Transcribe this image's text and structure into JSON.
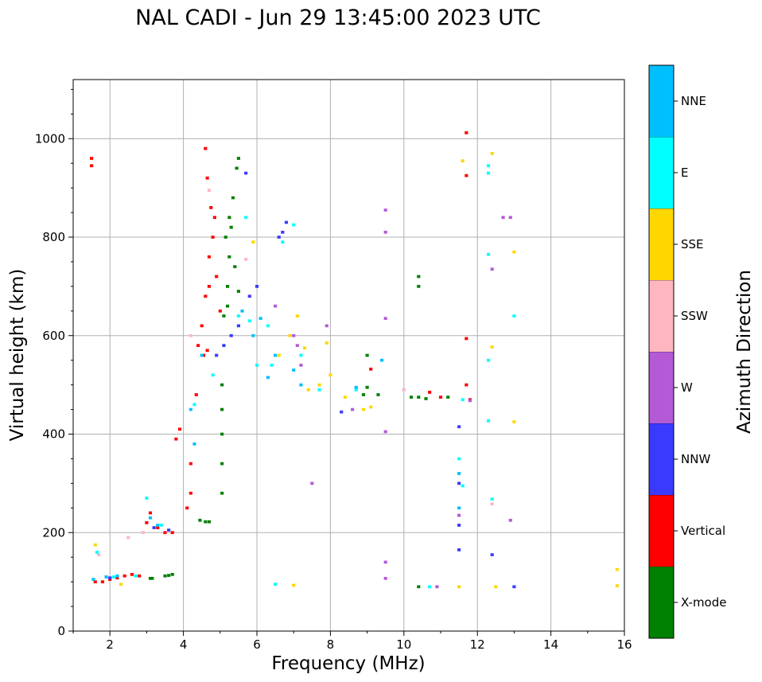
{
  "chart_data": {
    "type": "scatter",
    "title": "NAL CADI - Jun 29 13:45:00 2023 UTC",
    "xlabel": "Frequency (MHz)",
    "ylabel": "Virtual height (km)",
    "xlim": [
      1,
      16
    ],
    "ylim": [
      0,
      1120
    ],
    "xticks": [
      2,
      4,
      6,
      8,
      10,
      12,
      14,
      16
    ],
    "yticks": [
      0,
      200,
      400,
      600,
      800,
      1000
    ],
    "grid": true,
    "colorbar": {
      "label": "Azimuth Direction",
      "categories": [
        {
          "name": "X-mode",
          "color": "#008000"
        },
        {
          "name": "Vertical",
          "color": "#ff0000"
        },
        {
          "name": "NNW",
          "color": "#3a3aff"
        },
        {
          "name": "W",
          "color": "#b45ad7"
        },
        {
          "name": "SSW",
          "color": "#ffb6c1"
        },
        {
          "name": "SSE",
          "color": "#ffd700"
        },
        {
          "name": "E",
          "color": "#00ffff"
        },
        {
          "name": "NNE",
          "color": "#00bfff"
        }
      ]
    },
    "series": [
      {
        "name": "X-mode",
        "points": [
          [
            3.1,
            107
          ],
          [
            3.15,
            107
          ],
          [
            3.5,
            112
          ],
          [
            3.6,
            113
          ],
          [
            3.7,
            115
          ],
          [
            4.45,
            225
          ],
          [
            4.6,
            222
          ],
          [
            4.7,
            222
          ],
          [
            5.05,
            280
          ],
          [
            5.05,
            340
          ],
          [
            5.05,
            400
          ],
          [
            5.05,
            450
          ],
          [
            5.05,
            500
          ],
          [
            5.1,
            640
          ],
          [
            5.2,
            700
          ],
          [
            5.25,
            760
          ],
          [
            5.3,
            820
          ],
          [
            5.35,
            880
          ],
          [
            5.45,
            940
          ],
          [
            5.5,
            960
          ],
          [
            5.15,
            800
          ],
          [
            5.25,
            840
          ],
          [
            5.4,
            740
          ],
          [
            5.5,
            690
          ],
          [
            5.2,
            660
          ],
          [
            8.9,
            480
          ],
          [
            9.0,
            495
          ],
          [
            9.0,
            560
          ],
          [
            9.3,
            480
          ],
          [
            10.2,
            475
          ],
          [
            10.4,
            475
          ],
          [
            10.4,
            700
          ],
          [
            10.4,
            720
          ],
          [
            10.4,
            90
          ],
          [
            10.6,
            472
          ],
          [
            11.2,
            475
          ]
        ]
      },
      {
        "name": "Vertical",
        "points": [
          [
            1.5,
            945
          ],
          [
            1.5,
            960
          ],
          [
            1.6,
            100
          ],
          [
            1.8,
            100
          ],
          [
            2.0,
            105
          ],
          [
            2.2,
            108
          ],
          [
            2.4,
            112
          ],
          [
            2.6,
            115
          ],
          [
            2.8,
            112
          ],
          [
            3.0,
            220
          ],
          [
            3.1,
            240
          ],
          [
            3.3,
            210
          ],
          [
            3.5,
            200
          ],
          [
            3.7,
            200
          ],
          [
            3.8,
            390
          ],
          [
            3.9,
            410
          ],
          [
            4.1,
            250
          ],
          [
            4.2,
            280
          ],
          [
            4.2,
            340
          ],
          [
            4.35,
            480
          ],
          [
            4.4,
            580
          ],
          [
            4.5,
            620
          ],
          [
            4.6,
            680
          ],
          [
            4.7,
            700
          ],
          [
            4.7,
            760
          ],
          [
            4.8,
            800
          ],
          [
            4.85,
            840
          ],
          [
            4.6,
            980
          ],
          [
            4.65,
            920
          ],
          [
            4.75,
            860
          ],
          [
            4.9,
            720
          ],
          [
            5.0,
            650
          ],
          [
            4.55,
            560
          ],
          [
            4.65,
            570
          ],
          [
            9.1,
            532
          ],
          [
            10.7,
            485
          ],
          [
            11.0,
            475
          ],
          [
            11.8,
            470
          ],
          [
            11.7,
            925
          ],
          [
            11.7,
            1012
          ],
          [
            11.7,
            594
          ],
          [
            11.7,
            500
          ]
        ]
      },
      {
        "name": "NNW",
        "points": [
          [
            2.0,
            108
          ],
          [
            3.2,
            210
          ],
          [
            3.6,
            205
          ],
          [
            4.9,
            560
          ],
          [
            5.1,
            580
          ],
          [
            5.3,
            600
          ],
          [
            5.5,
            620
          ],
          [
            5.8,
            680
          ],
          [
            6.0,
            700
          ],
          [
            6.6,
            800
          ],
          [
            6.7,
            810
          ],
          [
            6.8,
            830
          ],
          [
            5.7,
            930
          ],
          [
            8.3,
            445
          ],
          [
            11.5,
            415
          ],
          [
            11.5,
            215
          ],
          [
            11.5,
            165
          ],
          [
            11.5,
            300
          ],
          [
            12.4,
            155
          ],
          [
            13.0,
            90
          ]
        ]
      },
      {
        "name": "W",
        "points": [
          [
            6.5,
            660
          ],
          [
            7.0,
            600
          ],
          [
            7.1,
            580
          ],
          [
            7.2,
            540
          ],
          [
            7.5,
            300
          ],
          [
            7.9,
            620
          ],
          [
            8.6,
            450
          ],
          [
            9.5,
            855
          ],
          [
            9.5,
            810
          ],
          [
            9.5,
            635
          ],
          [
            9.5,
            405
          ],
          [
            9.5,
            140
          ],
          [
            9.5,
            107
          ],
          [
            10.9,
            90
          ],
          [
            11.5,
            235
          ],
          [
            12.4,
            735
          ],
          [
            12.7,
            840
          ],
          [
            12.9,
            840
          ],
          [
            12.9,
            225
          ],
          [
            11.8,
            468
          ]
        ]
      },
      {
        "name": "SSW",
        "points": [
          [
            1.7,
            155
          ],
          [
            2.5,
            190
          ],
          [
            2.9,
            200
          ],
          [
            4.2,
            600
          ],
          [
            4.7,
            895
          ],
          [
            5.7,
            755
          ],
          [
            10.0,
            490
          ],
          [
            12.4,
            258
          ]
        ]
      },
      {
        "name": "SSE",
        "points": [
          [
            1.6,
            175
          ],
          [
            2.3,
            95
          ],
          [
            5.9,
            790
          ],
          [
            6.6,
            560
          ],
          [
            6.9,
            600
          ],
          [
            7.0,
            93
          ],
          [
            7.1,
            640
          ],
          [
            7.3,
            575
          ],
          [
            7.4,
            490
          ],
          [
            7.7,
            500
          ],
          [
            7.9,
            585
          ],
          [
            8.0,
            520
          ],
          [
            8.4,
            475
          ],
          [
            8.9,
            450
          ],
          [
            9.1,
            455
          ],
          [
            11.5,
            90
          ],
          [
            11.6,
            955
          ],
          [
            12.4,
            970
          ],
          [
            12.4,
            577
          ],
          [
            12.5,
            90
          ],
          [
            13.0,
            770
          ],
          [
            13.0,
            425
          ],
          [
            15.8,
            125
          ],
          [
            15.8,
            92
          ]
        ]
      },
      {
        "name": "E",
        "points": [
          [
            1.65,
            160
          ],
          [
            2.1,
            110
          ],
          [
            2.7,
            112
          ],
          [
            3.0,
            270
          ],
          [
            3.4,
            215
          ],
          [
            4.3,
            460
          ],
          [
            4.8,
            520
          ],
          [
            5.5,
            640
          ],
          [
            5.7,
            840
          ],
          [
            5.8,
            630
          ],
          [
            6.0,
            540
          ],
          [
            6.3,
            620
          ],
          [
            6.4,
            540
          ],
          [
            6.5,
            95
          ],
          [
            6.7,
            790
          ],
          [
            7.0,
            825
          ],
          [
            7.2,
            560
          ],
          [
            7.7,
            490
          ],
          [
            8.7,
            490
          ],
          [
            11.5,
            350
          ],
          [
            11.6,
            295
          ],
          [
            12.3,
            945
          ],
          [
            12.3,
            930
          ],
          [
            12.3,
            765
          ],
          [
            12.3,
            550
          ],
          [
            12.3,
            427
          ],
          [
            12.4,
            268
          ],
          [
            10.7,
            90
          ],
          [
            13.0,
            640
          ],
          [
            11.6,
            470
          ]
        ]
      },
      {
        "name": "NNE",
        "points": [
          [
            1.55,
            105
          ],
          [
            1.9,
            110
          ],
          [
            2.2,
            112
          ],
          [
            3.1,
            230
          ],
          [
            3.3,
            215
          ],
          [
            4.2,
            450
          ],
          [
            4.3,
            380
          ],
          [
            4.5,
            560
          ],
          [
            5.6,
            650
          ],
          [
            5.9,
            600
          ],
          [
            6.1,
            635
          ],
          [
            6.3,
            515
          ],
          [
            6.5,
            560
          ],
          [
            7.0,
            530
          ],
          [
            7.2,
            500
          ],
          [
            8.7,
            495
          ],
          [
            9.4,
            550
          ],
          [
            11.5,
            250
          ],
          [
            11.5,
            320
          ]
        ]
      }
    ]
  }
}
